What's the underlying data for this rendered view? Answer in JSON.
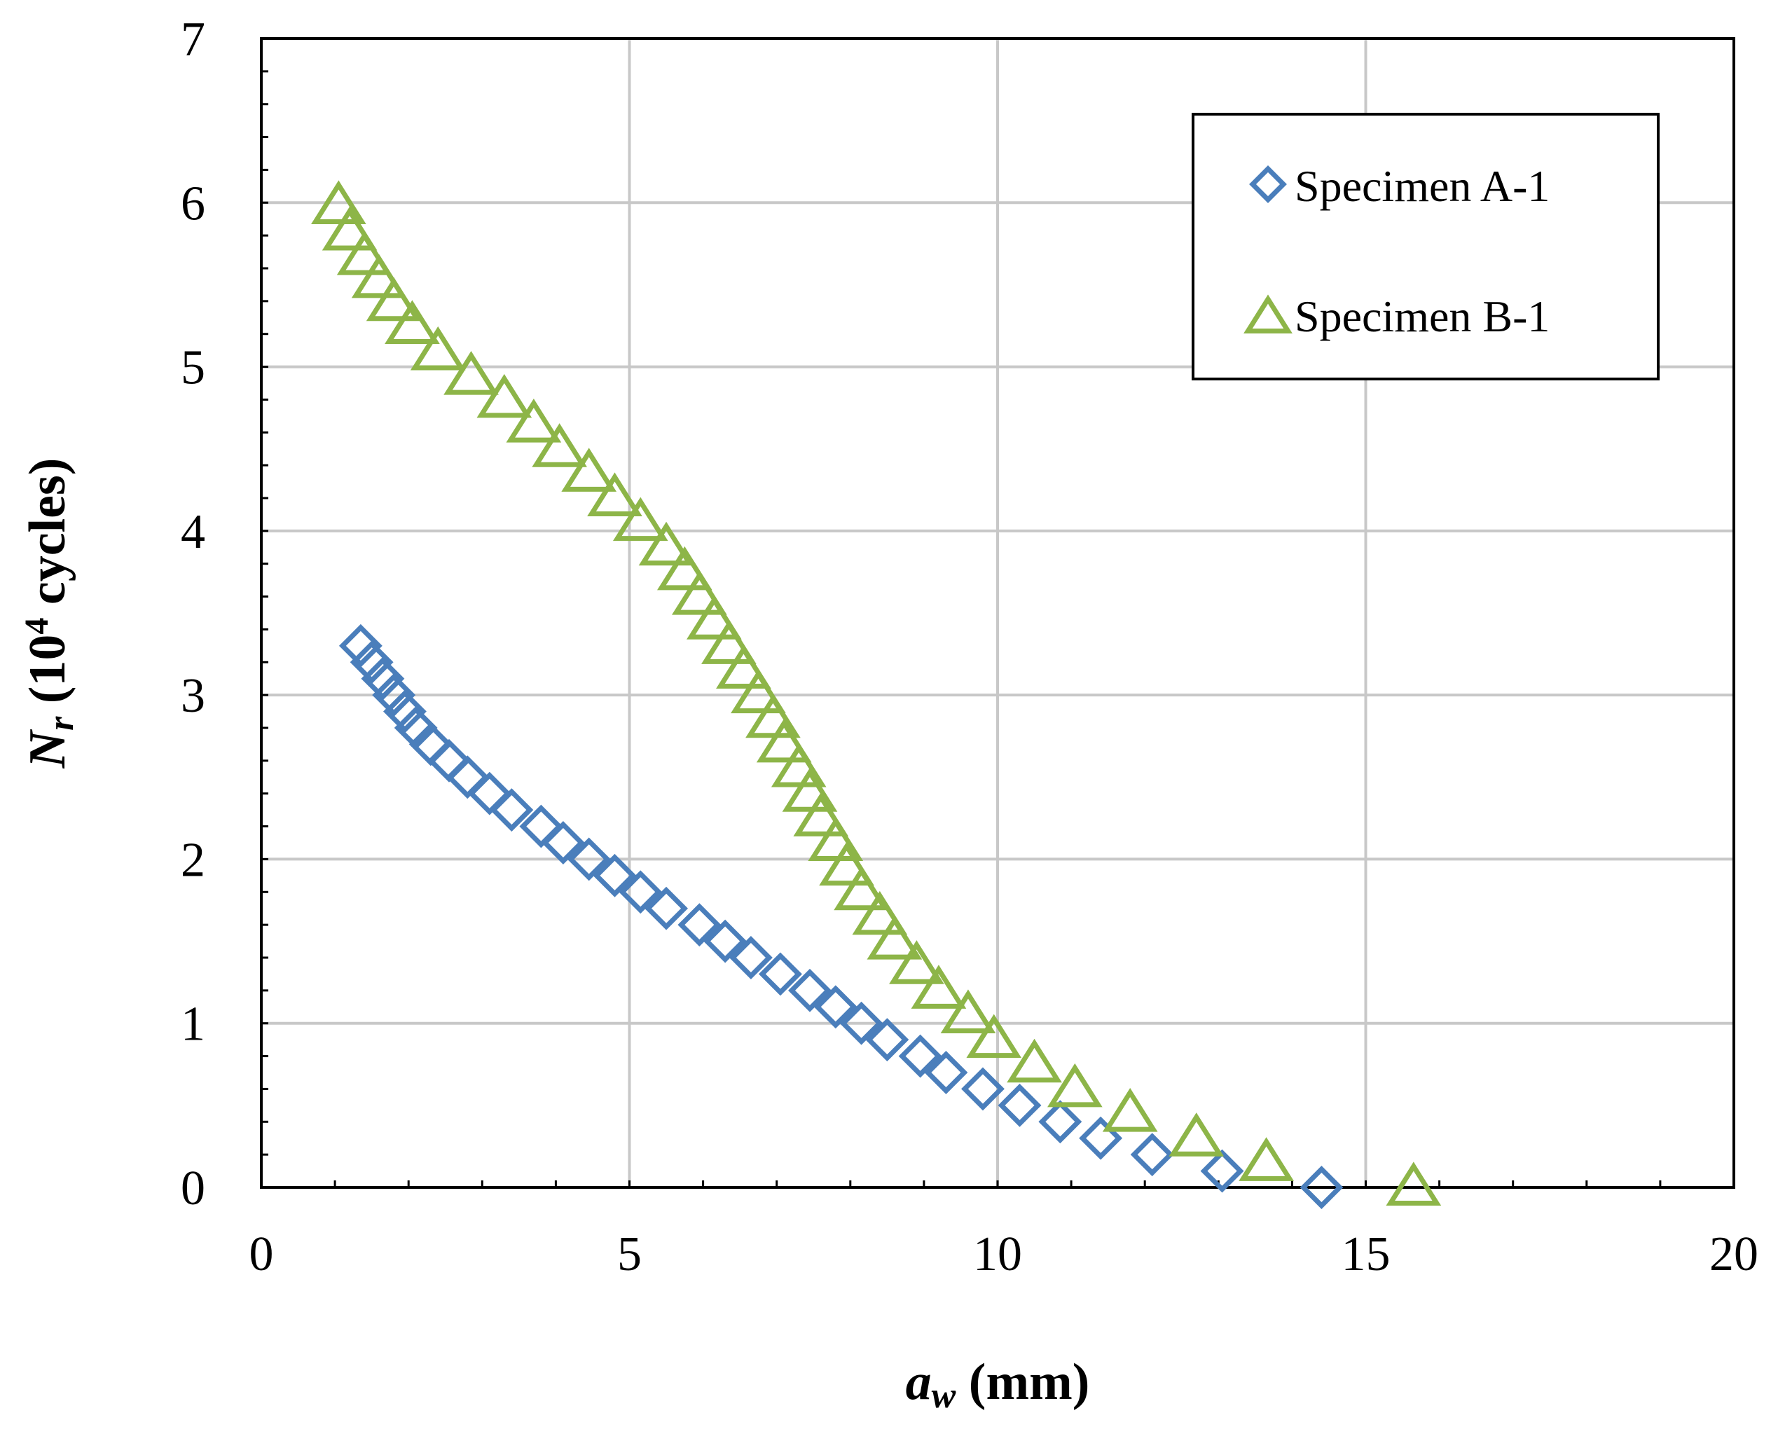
{
  "chart_data": {
    "type": "scatter",
    "title": "",
    "xlabel": {
      "symbol": "a",
      "subscript": "w",
      "unit": " (mm)"
    },
    "ylabel": {
      "symbol": "N",
      "subscript": "r",
      "prefix": " (10",
      "superscript": "4",
      "suffix": " cycles)"
    },
    "xlim": [
      0,
      20
    ],
    "ylim": [
      0,
      7
    ],
    "xticks": [
      0,
      5,
      10,
      15,
      20
    ],
    "yticks": [
      0,
      1,
      2,
      3,
      4,
      5,
      6,
      7
    ],
    "x_tick_labels": [
      "0",
      "5",
      "10",
      "15",
      "20"
    ],
    "y_tick_labels": [
      "0",
      "1",
      "2",
      "3",
      "4",
      "5",
      "6",
      "7"
    ],
    "grid": true,
    "legend_position": "top-right",
    "series": [
      {
        "name": "Specimen A-1",
        "marker": "diamond",
        "color": "#4a7ebb",
        "points": [
          [
            1.35,
            3.3
          ],
          [
            1.5,
            3.2
          ],
          [
            1.65,
            3.1
          ],
          [
            1.8,
            3.0
          ],
          [
            1.95,
            2.9
          ],
          [
            2.1,
            2.8
          ],
          [
            2.3,
            2.7
          ],
          [
            2.55,
            2.6
          ],
          [
            2.8,
            2.5
          ],
          [
            3.1,
            2.4
          ],
          [
            3.4,
            2.3
          ],
          [
            3.8,
            2.2
          ],
          [
            4.1,
            2.1
          ],
          [
            4.45,
            2.0
          ],
          [
            4.8,
            1.9
          ],
          [
            5.15,
            1.8
          ],
          [
            5.5,
            1.7
          ],
          [
            5.95,
            1.6
          ],
          [
            6.3,
            1.5
          ],
          [
            6.65,
            1.4
          ],
          [
            7.05,
            1.3
          ],
          [
            7.45,
            1.2
          ],
          [
            7.8,
            1.1
          ],
          [
            8.15,
            1.0
          ],
          [
            8.5,
            0.9
          ],
          [
            8.95,
            0.8
          ],
          [
            9.3,
            0.7
          ],
          [
            9.8,
            0.6
          ],
          [
            10.3,
            0.5
          ],
          [
            10.85,
            0.4
          ],
          [
            11.4,
            0.3
          ],
          [
            12.1,
            0.2
          ],
          [
            13.05,
            0.1
          ],
          [
            14.4,
            0.0
          ]
        ]
      },
      {
        "name": "Specimen B-1",
        "marker": "triangle",
        "color": "#8db548",
        "points": [
          [
            1.05,
            5.98
          ],
          [
            1.2,
            5.82
          ],
          [
            1.4,
            5.67
          ],
          [
            1.6,
            5.53
          ],
          [
            1.8,
            5.39
          ],
          [
            2.05,
            5.25
          ],
          [
            2.4,
            5.09
          ],
          [
            2.85,
            4.94
          ],
          [
            3.3,
            4.8
          ],
          [
            3.7,
            4.65
          ],
          [
            4.05,
            4.5
          ],
          [
            4.45,
            4.35
          ],
          [
            4.8,
            4.2
          ],
          [
            5.15,
            4.05
          ],
          [
            5.5,
            3.9
          ],
          [
            5.75,
            3.75
          ],
          [
            5.95,
            3.6
          ],
          [
            6.15,
            3.45
          ],
          [
            6.35,
            3.3
          ],
          [
            6.55,
            3.15
          ],
          [
            6.75,
            3.0
          ],
          [
            6.95,
            2.85
          ],
          [
            7.1,
            2.7
          ],
          [
            7.3,
            2.55
          ],
          [
            7.45,
            2.4
          ],
          [
            7.6,
            2.25
          ],
          [
            7.8,
            2.1
          ],
          [
            7.95,
            1.95
          ],
          [
            8.15,
            1.8
          ],
          [
            8.4,
            1.65
          ],
          [
            8.6,
            1.5
          ],
          [
            8.9,
            1.35
          ],
          [
            9.2,
            1.2
          ],
          [
            9.6,
            1.05
          ],
          [
            9.95,
            0.9
          ],
          [
            10.5,
            0.75
          ],
          [
            11.05,
            0.6
          ],
          [
            11.8,
            0.45
          ],
          [
            12.7,
            0.3
          ],
          [
            13.65,
            0.15
          ],
          [
            15.65,
            0.0
          ]
        ]
      }
    ]
  }
}
